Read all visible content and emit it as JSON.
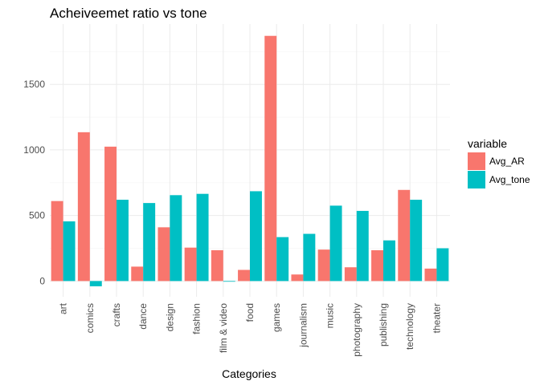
{
  "chart_data": {
    "type": "bar",
    "title": "Acheiveemet ratio vs tone",
    "xlabel": "Categories",
    "ylabel": "",
    "categories": [
      "art",
      "comics",
      "crafts",
      "dance",
      "design",
      "fashion",
      "film & video",
      "food",
      "games",
      "journalism",
      "music",
      "photography",
      "publishing",
      "technology",
      "theater"
    ],
    "series": [
      {
        "name": "Avg_AR",
        "color": "#F8766D",
        "values": [
          610,
          1135,
          1025,
          110,
          410,
          255,
          235,
          85,
          1870,
          50,
          240,
          105,
          235,
          695,
          95
        ]
      },
      {
        "name": "Avg_tone",
        "color": "#00BFC4",
        "values": [
          455,
          -40,
          620,
          595,
          655,
          665,
          -5,
          685,
          335,
          360,
          575,
          535,
          310,
          620,
          250
        ]
      }
    ],
    "ylim": [
      -120,
      1960
    ],
    "yticks": [
      0,
      500,
      1000,
      1500
    ],
    "grid": true,
    "legend": {
      "title": "variable",
      "placement": "right"
    }
  }
}
